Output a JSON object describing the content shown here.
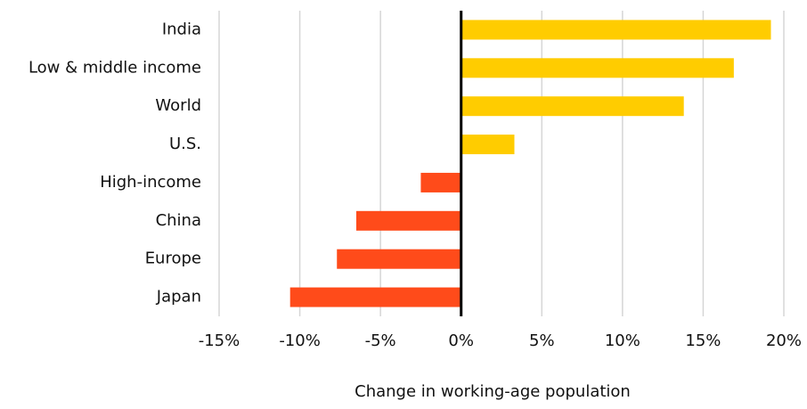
{
  "chart_data": {
    "type": "bar",
    "orientation": "horizontal",
    "x_label": "Change in working-age population",
    "categories": [
      "India",
      "Low & middle income",
      "World",
      "U.S.",
      "High-income",
      "China",
      "Europe",
      "Japan"
    ],
    "values": [
      19.2,
      16.9,
      13.8,
      3.3,
      -2.5,
      -6.5,
      -7.7,
      -10.6
    ],
    "colors": [
      "#ffcc00",
      "#ffcc00",
      "#ffcc00",
      "#ffcc00",
      "#ff4b1a",
      "#ff4b1a",
      "#ff4b1a",
      "#ff4b1a"
    ],
    "xlim": [
      -15,
      20
    ],
    "xticks": [
      {
        "value": -15,
        "label": "-15%"
      },
      {
        "value": -10,
        "label": "-10%"
      },
      {
        "value": -5,
        "label": "-5%"
      },
      {
        "value": 0,
        "label": "0%"
      },
      {
        "value": 5,
        "label": "5%"
      },
      {
        "value": 10,
        "label": "10%"
      },
      {
        "value": 15,
        "label": "15%"
      },
      {
        "value": 20,
        "label": "20%"
      }
    ],
    "grid": true
  }
}
